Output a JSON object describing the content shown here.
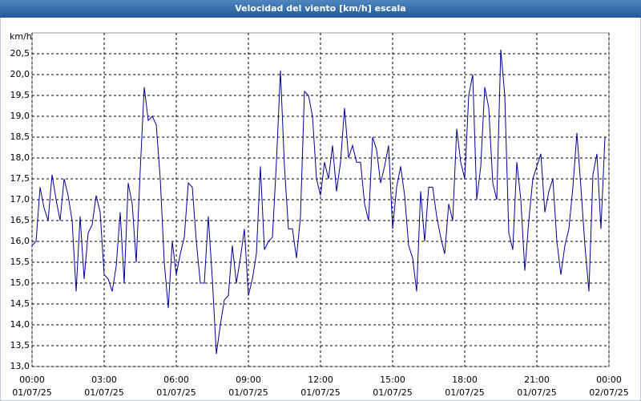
{
  "chart_data": {
    "type": "line",
    "title": "Velocidad del viento [km/h] escala",
    "ylabel": "km/h",
    "x": [
      "01/07/25 00:00",
      "01/07/25 00:10",
      "01/07/25 00:20",
      "01/07/25 00:30",
      "01/07/25 00:40",
      "01/07/25 00:50",
      "01/07/25 01:00",
      "01/07/25 01:10",
      "01/07/25 01:20",
      "01/07/25 01:30",
      "01/07/25 01:40",
      "01/07/25 01:50",
      "01/07/25 02:00",
      "01/07/25 02:10",
      "01/07/25 02:20",
      "01/07/25 02:30",
      "01/07/25 02:40",
      "01/07/25 02:50",
      "01/07/25 03:00",
      "01/07/25 03:10",
      "01/07/25 03:20",
      "01/07/25 03:30",
      "01/07/25 03:40",
      "01/07/25 03:50",
      "01/07/25 04:00",
      "01/07/25 04:10",
      "01/07/25 04:20",
      "01/07/25 04:30",
      "01/07/25 04:40",
      "01/07/25 04:50",
      "01/07/25 05:00",
      "01/07/25 05:10",
      "01/07/25 05:20",
      "01/07/25 05:30",
      "01/07/25 05:40",
      "01/07/25 05:50",
      "01/07/25 06:00",
      "01/07/25 06:10",
      "01/07/25 06:20",
      "01/07/25 06:30",
      "01/07/25 06:40",
      "01/07/25 06:50",
      "01/07/25 07:00",
      "01/07/25 07:10",
      "01/07/25 07:20",
      "01/07/25 07:30",
      "01/07/25 07:40",
      "01/07/25 07:50",
      "01/07/25 08:00",
      "01/07/25 08:10",
      "01/07/25 08:20",
      "01/07/25 08:30",
      "01/07/25 08:40",
      "01/07/25 08:50",
      "01/07/25 09:00",
      "01/07/25 09:10",
      "01/07/25 09:20",
      "01/07/25 09:30",
      "01/07/25 09:40",
      "01/07/25 09:50",
      "01/07/25 10:00",
      "01/07/25 10:10",
      "01/07/25 10:20",
      "01/07/25 10:30",
      "01/07/25 10:40",
      "01/07/25 10:50",
      "01/07/25 11:00",
      "01/07/25 11:10",
      "01/07/25 11:20",
      "01/07/25 11:30",
      "01/07/25 11:40",
      "01/07/25 11:50",
      "01/07/25 12:00",
      "01/07/25 12:10",
      "01/07/25 12:20",
      "01/07/25 12:30",
      "01/07/25 12:40",
      "01/07/25 12:50",
      "01/07/25 13:00",
      "01/07/25 13:10",
      "01/07/25 13:20",
      "01/07/25 13:30",
      "01/07/25 13:40",
      "01/07/25 13:50",
      "01/07/25 14:00",
      "01/07/25 14:10",
      "01/07/25 14:20",
      "01/07/25 14:30",
      "01/07/25 14:40",
      "01/07/25 14:50",
      "01/07/25 15:00",
      "01/07/25 15:10",
      "01/07/25 15:20",
      "01/07/25 15:30",
      "01/07/25 15:40",
      "01/07/25 15:50",
      "01/07/25 16:00",
      "01/07/25 16:10",
      "01/07/25 16:20",
      "01/07/25 16:30",
      "01/07/25 16:40",
      "01/07/25 16:50",
      "01/07/25 17:00",
      "01/07/25 17:10",
      "01/07/25 17:20",
      "01/07/25 17:30",
      "01/07/25 17:40",
      "01/07/25 17:50",
      "01/07/25 18:00",
      "01/07/25 18:10",
      "01/07/25 18:20",
      "01/07/25 18:30",
      "01/07/25 18:40",
      "01/07/25 18:50",
      "01/07/25 19:00",
      "01/07/25 19:10",
      "01/07/25 19:20",
      "01/07/25 19:30",
      "01/07/25 19:40",
      "01/07/25 19:50",
      "01/07/25 20:00",
      "01/07/25 20:10",
      "01/07/25 20:20",
      "01/07/25 20:30",
      "01/07/25 20:40",
      "01/07/25 20:50",
      "01/07/25 21:00",
      "01/07/25 21:10",
      "01/07/25 21:20",
      "01/07/25 21:30",
      "01/07/25 21:40",
      "01/07/25 21:50",
      "01/07/25 22:00",
      "01/07/25 22:10",
      "01/07/25 22:20",
      "01/07/25 22:30",
      "01/07/25 22:40",
      "01/07/25 22:50",
      "01/07/25 23:00",
      "01/07/25 23:10",
      "01/07/25 23:20",
      "01/07/25 23:30",
      "01/07/25 23:40",
      "01/07/25 23:50"
    ],
    "series": [
      {
        "name": "Velocidad del viento",
        "color": "#000099",
        "values": [
          15.9,
          16.0,
          17.3,
          16.8,
          16.5,
          17.6,
          17.0,
          16.5,
          17.5,
          17.1,
          16.5,
          14.8,
          16.6,
          15.1,
          16.2,
          16.4,
          17.1,
          16.7,
          15.2,
          15.1,
          14.8,
          15.4,
          16.7,
          15.0,
          17.4,
          16.9,
          15.5,
          17.7,
          19.7,
          18.9,
          19.0,
          18.8,
          17.5,
          15.5,
          14.4,
          16.0,
          15.2,
          15.7,
          16.1,
          17.4,
          17.3,
          16.0,
          15.0,
          15.0,
          16.6,
          15.1,
          13.3,
          14.0,
          14.6,
          14.7,
          15.9,
          15.0,
          15.6,
          16.3,
          14.7,
          15.1,
          15.7,
          17.8,
          15.8,
          16.0,
          16.1,
          17.9,
          20.1,
          17.8,
          16.3,
          16.3,
          15.6,
          16.6,
          19.6,
          19.5,
          19.0,
          17.5,
          17.1,
          17.9,
          17.5,
          18.3,
          17.2,
          17.9,
          19.2,
          18.0,
          18.3,
          17.9,
          17.9,
          16.9,
          16.5,
          18.5,
          18.2,
          17.4,
          17.8,
          18.3,
          16.3,
          17.3,
          17.8,
          17.1,
          15.9,
          15.6,
          14.8,
          17.2,
          16.0,
          17.3,
          17.3,
          16.6,
          16.1,
          15.7,
          16.9,
          16.5,
          18.7,
          17.9,
          17.5,
          19.5,
          20.0,
          17.0,
          17.8,
          19.7,
          19.2,
          17.4,
          17.0,
          20.6,
          19.5,
          16.2,
          15.8,
          17.9,
          17.0,
          15.3,
          16.5,
          17.5,
          17.8,
          18.1,
          16.7,
          17.2,
          17.5,
          16.0,
          15.2,
          15.9,
          16.3,
          17.3,
          18.6,
          17.3,
          15.9,
          14.8,
          17.6,
          18.1,
          16.3,
          18.5
        ]
      }
    ],
    "xlim": [
      "01/07/25 00:00",
      "02/07/25 00:00"
    ],
    "xticks": [
      {
        "value": "01/07/25 00:00",
        "label": [
          "00:00",
          "01/07/25"
        ]
      },
      {
        "value": "01/07/25 03:00",
        "label": [
          "03:00",
          "01/07/25"
        ]
      },
      {
        "value": "01/07/25 06:00",
        "label": [
          "06:00",
          "01/07/25"
        ]
      },
      {
        "value": "01/07/25 09:00",
        "label": [
          "09:00",
          "01/07/25"
        ]
      },
      {
        "value": "01/07/25 12:00",
        "label": [
          "12:00",
          "01/07/25"
        ]
      },
      {
        "value": "01/07/25 15:00",
        "label": [
          "15:00",
          "01/07/25"
        ]
      },
      {
        "value": "01/07/25 18:00",
        "label": [
          "18:00",
          "01/07/25"
        ]
      },
      {
        "value": "01/07/25 21:00",
        "label": [
          "21:00",
          "01/07/25"
        ]
      },
      {
        "value": "02/07/25 00:00",
        "label": [
          "00:00",
          "02/07/25"
        ]
      }
    ],
    "ylim": [
      13,
      21
    ],
    "yticks": [
      {
        "value": 13,
        "label": "13,0"
      },
      {
        "value": 13.5,
        "label": "13,5"
      },
      {
        "value": 14,
        "label": "14,0"
      },
      {
        "value": 14.5,
        "label": "14,5"
      },
      {
        "value": 15,
        "label": "15,0"
      },
      {
        "value": 15.5,
        "label": "15,5"
      },
      {
        "value": 16,
        "label": "16,0"
      },
      {
        "value": 16.5,
        "label": "16,5"
      },
      {
        "value": 17,
        "label": "17,0"
      },
      {
        "value": 17.5,
        "label": "17,5"
      },
      {
        "value": 18,
        "label": "18,0"
      },
      {
        "value": 18.5,
        "label": "18,5"
      },
      {
        "value": 19,
        "label": "19,0"
      },
      {
        "value": 19.5,
        "label": "19,5"
      },
      {
        "value": 20,
        "label": "20,0"
      },
      {
        "value": 20.5,
        "label": "20,5"
      }
    ],
    "grid": true
  }
}
